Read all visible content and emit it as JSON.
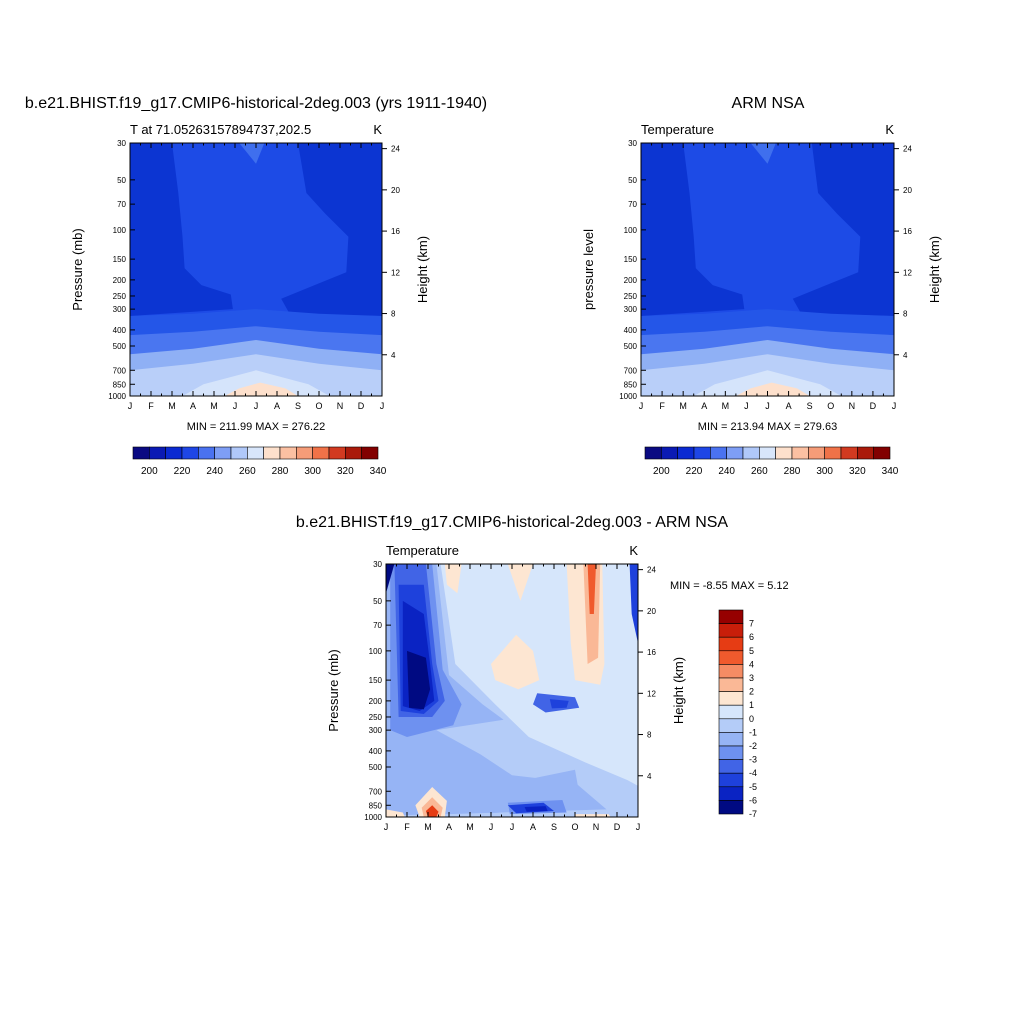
{
  "charts": [
    {
      "type": "heatmap",
      "title": "b.e21.BHIST.f19_g17.CMIP6-historical-2deg.003 (yrs 1911-1940)",
      "left_label": "T at 71.05263157894737,202.5",
      "right_label": "K",
      "ylabel": "Pressure (mb)",
      "y2label": "Height (km)",
      "x_ticks": [
        "J",
        "F",
        "M",
        "A",
        "M",
        "J",
        "J",
        "A",
        "S",
        "O",
        "N",
        "D",
        "J"
      ],
      "y_ticks": [
        "30",
        "50",
        "70",
        "100",
        "150",
        "200",
        "250",
        "300",
        "400",
        "500",
        "700",
        "850",
        "1000"
      ],
      "y2_ticks": [
        "24",
        "20",
        "16",
        "12",
        "8",
        "4"
      ],
      "stats": "MIN = 211.99 MAX = 276.22",
      "colorbar_labels": [
        "200",
        "220",
        "240",
        "260",
        "280",
        "300",
        "320",
        "340"
      ],
      "bands": [
        {
          "top_mb": 30,
          "bottom_mb": 330,
          "color": "#1d48e0"
        },
        {
          "top_mb": 330,
          "bottom_mb": 410,
          "color": "#2456e8"
        },
        {
          "top_mb": 410,
          "bottom_mb": 530,
          "color": "#4a76f0"
        },
        {
          "top_mb": 530,
          "bottom_mb": 680,
          "color": "#8fb0f5"
        },
        {
          "top_mb": 680,
          "bottom_mb": 850,
          "color": "#b9cff9"
        },
        {
          "top_mb": 850,
          "bottom_mb": 1000,
          "color": "#d5e4fb"
        }
      ]
    },
    {
      "type": "heatmap",
      "title": "ARM NSA",
      "left_label": "Temperature",
      "right_label": "K",
      "ylabel": "pressure level",
      "y2label": "Height (km)",
      "x_ticks": [
        "J",
        "F",
        "M",
        "A",
        "M",
        "J",
        "J",
        "A",
        "S",
        "O",
        "N",
        "D",
        "J"
      ],
      "y_ticks": [
        "30",
        "50",
        "70",
        "100",
        "150",
        "200",
        "250",
        "300",
        "400",
        "500",
        "700",
        "850",
        "1000"
      ],
      "y2_ticks": [
        "24",
        "20",
        "16",
        "12",
        "8",
        "4"
      ],
      "stats": "MIN = 213.94 MAX = 279.63",
      "colorbar_labels": [
        "200",
        "220",
        "240",
        "260",
        "280",
        "300",
        "320",
        "340"
      ]
    },
    {
      "type": "heatmap",
      "title": "b.e21.BHIST.f19_g17.CMIP6-historical-2deg.003 - ARM NSA",
      "left_label": "Temperature",
      "right_label": "K",
      "ylabel": "Pressure (mb)",
      "y2label": "Height (km)",
      "x_ticks": [
        "J",
        "F",
        "M",
        "A",
        "M",
        "J",
        "J",
        "A",
        "S",
        "O",
        "N",
        "D",
        "J"
      ],
      "y_ticks": [
        "30",
        "50",
        "70",
        "100",
        "150",
        "200",
        "250",
        "300",
        "400",
        "500",
        "700",
        "850",
        "1000"
      ],
      "y2_ticks": [
        "24",
        "20",
        "16",
        "12",
        "8",
        "4"
      ],
      "stats": "MIN =  -8.55 MAX =   5.12",
      "colorbar_labels": [
        "7",
        "6",
        "5",
        "4",
        "3",
        "2",
        "1",
        "0",
        "-1",
        "-2",
        "-3",
        "-4",
        "-5",
        "-6",
        "-7"
      ]
    }
  ],
  "colors": {
    "temp_scale": [
      "#0a0a82",
      "#0a1ab4",
      "#0a2ad2",
      "#1e46e6",
      "#4a72f0",
      "#7e9ef5",
      "#b0c8f9",
      "#d8e6fb",
      "#fde0cc",
      "#fbc0a2",
      "#f59c78",
      "#f07248",
      "#d23a20",
      "#aa1a0a",
      "#820000"
    ],
    "diff_scale": [
      "#960000",
      "#c81e0a",
      "#e63c14",
      "#f05a2d",
      "#f58c64",
      "#fab896",
      "#fde6d2",
      "#d6e6fb",
      "#b4ccf8",
      "#96b4f5",
      "#6e91f0",
      "#4164e6",
      "#1e41dc",
      "#0a23c3",
      "#000a82"
    ]
  }
}
